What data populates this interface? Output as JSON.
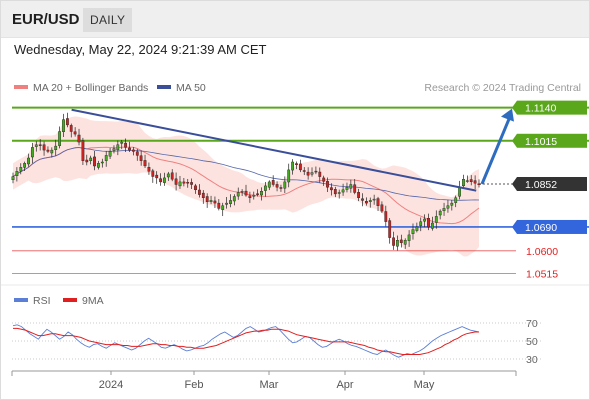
{
  "header": {
    "symbol": "EUR/USD",
    "timeframe": "DAILY",
    "datetime": "Wednesday, May 22, 2024 9:21:39 AM CET"
  },
  "legend": {
    "ma20_label": "MA 20 + Bollinger Bands",
    "ma50_label": "MA 50",
    "copyright": "Research © 2024 Trading Central",
    "rsi_label": "RSI",
    "rsi_ma_label": "9MA"
  },
  "colors": {
    "resistance": "#5aa71c",
    "support": "#3366dd",
    "red_level": "#e02020",
    "current": "#333333",
    "trendline": "#3a4e9a",
    "arrow": "#2e6cc0",
    "ma20": "#f08080",
    "bollinger": "#fcd9d4",
    "ma50": "#5566aa",
    "candle_up": "#44aa22",
    "candle_down": "#cc2222",
    "rsi": "#5b7fd6",
    "rsi_ma": "#e02020"
  },
  "chart_data": [
    {
      "type": "candlestick",
      "title": "EUR/USD",
      "ylim": [
        1.049,
        1.1165
      ],
      "x_tick_labels": [
        "2024",
        "Feb",
        "Mar",
        "Apr",
        "May"
      ],
      "levels": [
        {
          "value": 1.114,
          "label": "1.1140",
          "kind": "resistance"
        },
        {
          "value": 1.1015,
          "label": "1.1015",
          "kind": "resistance"
        },
        {
          "value": 1.0852,
          "label": "1.0852",
          "kind": "current"
        },
        {
          "value": 1.069,
          "label": "1.0690",
          "kind": "support"
        },
        {
          "value": 1.06,
          "label": "1.0600",
          "kind": "red"
        },
        {
          "value": 1.0515,
          "label": "1.0515",
          "kind": "red"
        }
      ],
      "trendline": {
        "from": {
          "x": "2023-12-28",
          "y": 1.1132
        },
        "to": {
          "x": "2024-05-21",
          "y": 1.0827
        }
      },
      "target_arrow": {
        "from": 1.0852,
        "to": 1.114
      },
      "closes": [
        1.088,
        1.09,
        1.0915,
        1.093,
        1.095,
        1.099,
        1.1,
        1.1,
        1.098,
        1.0975,
        1.098,
        1.0995,
        1.105,
        1.1095,
        1.1075,
        1.105,
        1.104,
        1.101,
        1.094,
        1.0935,
        1.095,
        1.092,
        1.093,
        1.0935,
        1.096,
        1.0975,
        1.0985,
        1.1,
        1.101,
        1.099,
        1.098,
        1.0975,
        1.096,
        1.094,
        1.092,
        1.09,
        1.088,
        1.0875,
        1.086,
        1.0875,
        1.089,
        1.087,
        1.085,
        1.086,
        1.0855,
        1.0855,
        1.085,
        1.083,
        1.0812,
        1.08,
        1.0785,
        1.079,
        1.078,
        1.076,
        1.077,
        1.078,
        1.079,
        1.0805,
        1.082,
        1.0825,
        1.081,
        1.08,
        1.081,
        1.0815,
        1.0825,
        1.0845,
        1.086,
        1.085,
        1.084,
        1.0835,
        1.086,
        1.0905,
        1.0935,
        1.0925,
        1.0905,
        1.09,
        1.0885,
        1.0895,
        1.09,
        1.088,
        1.0862,
        1.084,
        1.083,
        1.0815,
        1.082,
        1.083,
        1.084,
        1.085,
        1.082,
        1.08,
        1.079,
        1.078,
        1.079,
        1.0795,
        1.077,
        1.075,
        1.071,
        1.065,
        1.062,
        1.064,
        1.063,
        1.064,
        1.066,
        1.068,
        1.069,
        1.071,
        1.072,
        1.069,
        1.0705,
        1.073,
        1.075,
        1.076,
        1.077,
        1.078,
        1.08,
        1.084,
        1.087,
        1.0865,
        1.086,
        1.0855,
        1.0852
      ]
    },
    {
      "type": "line",
      "title": "RSI",
      "ylim": [
        20,
        80
      ],
      "y_tick_labels": [
        "70",
        "50",
        "30"
      ],
      "levels": [
        70,
        50,
        30
      ],
      "series": [
        {
          "name": "RSI",
          "values": [
            67,
            68,
            66,
            62,
            58,
            55,
            52,
            58,
            63,
            60,
            56,
            52,
            55,
            60,
            57,
            52,
            48,
            45,
            43,
            46,
            47,
            44,
            42,
            45,
            48,
            46,
            44,
            42,
            40,
            42,
            46,
            50,
            53,
            50,
            47,
            43,
            42,
            44,
            46,
            44,
            41,
            39,
            40,
            42,
            44,
            45,
            48,
            52,
            55,
            58,
            60,
            57,
            54,
            56,
            60,
            64,
            66,
            63,
            60,
            61,
            63,
            65,
            66,
            62,
            57,
            52,
            48,
            49,
            52,
            55,
            54,
            50,
            46,
            43,
            44,
            47,
            50,
            52,
            50,
            47,
            45,
            44,
            42,
            40,
            38,
            36,
            35,
            38,
            40,
            37,
            34,
            32,
            34,
            36,
            35,
            37,
            39,
            42,
            46,
            50,
            53,
            56,
            58,
            60,
            62,
            64,
            66,
            64,
            62,
            61,
            60
          ]
        },
        {
          "name": "9MA",
          "values": [
            64,
            64,
            63,
            62,
            60,
            58,
            56,
            56,
            57,
            58,
            58,
            57,
            56,
            56,
            56,
            55,
            54,
            52,
            50,
            49,
            48,
            47,
            46,
            46,
            46,
            46,
            45,
            45,
            44,
            44,
            44,
            45,
            46,
            47,
            47,
            46,
            46,
            45,
            45,
            44,
            44,
            43,
            43,
            42,
            42,
            42,
            43,
            44,
            45,
            47,
            49,
            51,
            53,
            55,
            57,
            59,
            60,
            61,
            61,
            62,
            62,
            63,
            63,
            63,
            62,
            61,
            59,
            57,
            56,
            55,
            54,
            53,
            52,
            51,
            50,
            49,
            49,
            49,
            49,
            49,
            48,
            47,
            46,
            45,
            43,
            42,
            40,
            39,
            38,
            38,
            37,
            36,
            35,
            35,
            35,
            35,
            35,
            36,
            37,
            39,
            41,
            43,
            46,
            48,
            51,
            53,
            56,
            58,
            59,
            60,
            60
          ]
        }
      ]
    }
  ]
}
